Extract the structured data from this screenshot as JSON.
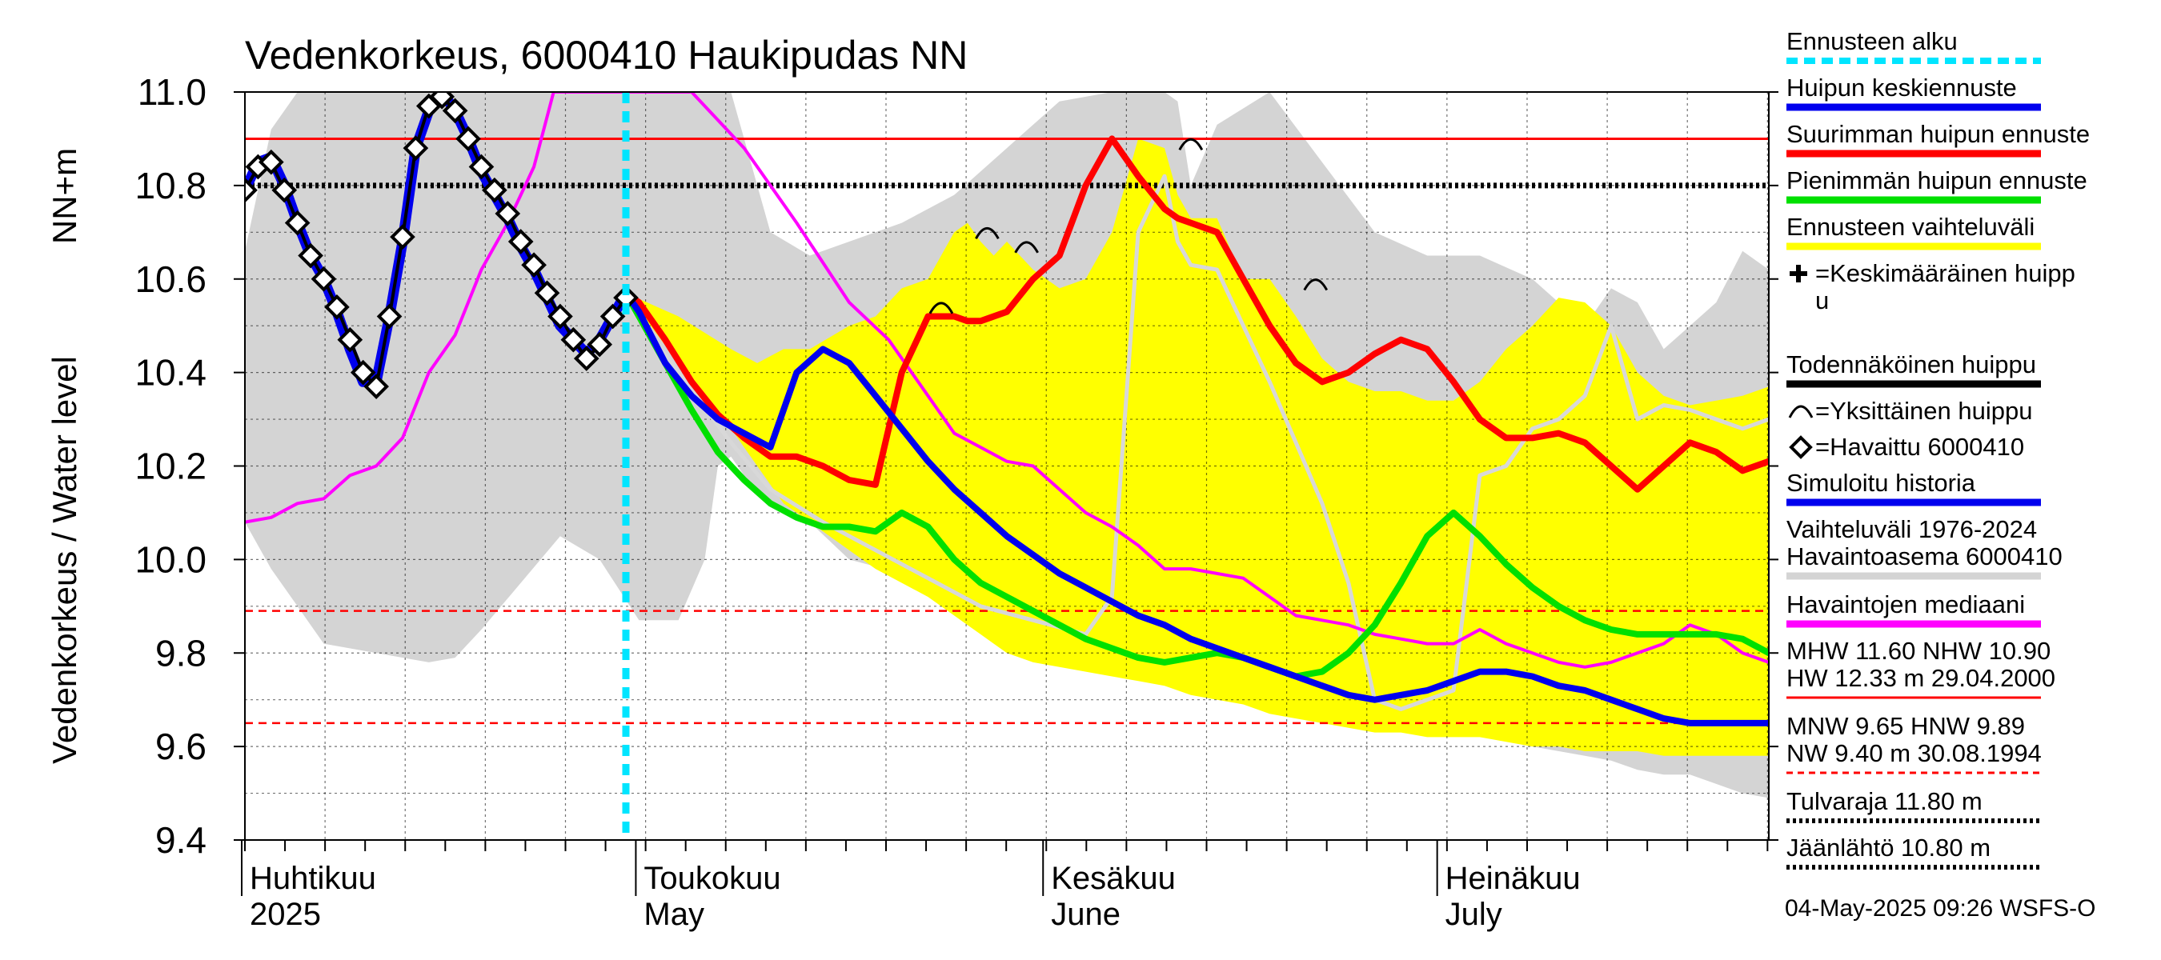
{
  "chart_data": {
    "type": "line",
    "title": "Vedenkorkeus, 6000410 Haukipudas NN",
    "ylabel_lines": [
      "Vedenkorkeus / Water level",
      "NN+m"
    ],
    "ylim": [
      9.4,
      11.0
    ],
    "yticks": [
      "9.4",
      "9.6",
      "9.8",
      "10.0",
      "10.2",
      "10.4",
      "10.6",
      "10.8",
      "11.0"
    ],
    "x_range_days": [
      0,
      116
    ],
    "month_labels": [
      {
        "day": 0,
        "fi": "Huhtikuu",
        "en": "2025"
      },
      {
        "day": 30,
        "fi": "Toukokuu",
        "en": "May"
      },
      {
        "day": 61,
        "fi": "Kesäkuu",
        "en": "June"
      },
      {
        "day": 91,
        "fi": "Heinäkuu",
        "en": "July"
      }
    ],
    "forecast_start_day": 29,
    "reference_lines": [
      {
        "value": 10.9,
        "style": "solid",
        "color": "#ff0000"
      },
      {
        "value": 10.8,
        "style": "dotted",
        "color": "#000000"
      },
      {
        "value": 9.89,
        "style": "dashed",
        "color": "#ff0000"
      },
      {
        "value": 9.65,
        "style": "dashed",
        "color": "#ff0000"
      }
    ],
    "history_range": {
      "color": "#d4d4d4",
      "x": [
        0,
        2,
        4,
        6,
        10,
        14,
        16,
        18,
        21,
        24,
        27,
        30,
        33,
        35,
        36,
        37,
        38,
        40,
        43,
        46,
        50,
        54,
        58,
        62,
        66,
        70,
        71,
        72,
        74,
        78,
        82,
        86,
        90,
        94,
        98,
        102,
        104,
        106,
        108,
        110,
        112,
        114,
        116
      ],
      "upper": [
        10.66,
        10.92,
        11.0,
        11.0,
        11.0,
        11.0,
        11.0,
        11.0,
        11.0,
        11.0,
        11.0,
        11.0,
        11.0,
        11.0,
        11.0,
        11.0,
        10.9,
        10.7,
        10.65,
        10.68,
        10.72,
        10.78,
        10.88,
        10.98,
        11.0,
        11.0,
        10.98,
        10.8,
        10.93,
        11.0,
        10.85,
        10.7,
        10.65,
        10.65,
        10.6,
        10.5,
        10.58,
        10.55,
        10.45,
        10.5,
        10.55,
        10.66,
        10.62
      ],
      "lower": [
        10.08,
        9.98,
        9.9,
        9.82,
        9.8,
        9.78,
        9.79,
        9.85,
        9.95,
        10.05,
        10.0,
        9.87,
        9.87,
        10.0,
        10.2,
        10.22,
        10.18,
        10.12,
        10.08,
        10.0,
        9.97,
        9.92,
        9.88,
        9.83,
        9.8,
        9.76,
        9.73,
        9.73,
        9.72,
        9.7,
        9.69,
        9.68,
        9.64,
        9.63,
        9.6,
        9.58,
        9.57,
        9.55,
        9.54,
        9.54,
        9.52,
        9.5,
        9.49
      ]
    },
    "series": [
      {
        "name": "Ennusteen vaihteluväli",
        "kind": "band",
        "color": "#ffff00",
        "x": [
          29,
          33,
          37,
          39,
          41,
          43,
          46,
          48,
          50,
          52,
          54,
          55,
          56,
          57,
          58,
          60,
          62,
          64,
          66,
          68,
          70,
          71,
          72,
          74,
          76,
          78,
          80,
          82,
          84,
          86,
          88,
          90,
          92,
          94,
          96,
          98,
          100,
          102,
          104,
          106,
          108,
          110,
          112,
          114,
          116
        ],
        "upper": [
          10.57,
          10.52,
          10.45,
          10.42,
          10.45,
          10.45,
          10.5,
          10.52,
          10.58,
          10.6,
          10.7,
          10.72,
          10.68,
          10.65,
          10.68,
          10.62,
          10.58,
          10.6,
          10.7,
          10.9,
          10.88,
          10.78,
          10.73,
          10.73,
          10.6,
          10.6,
          10.52,
          10.43,
          10.38,
          10.36,
          10.36,
          10.34,
          10.34,
          10.38,
          10.45,
          10.5,
          10.56,
          10.55,
          10.5,
          10.4,
          10.35,
          10.33,
          10.34,
          10.35,
          10.37
        ],
        "lower": [
          10.57,
          10.42,
          10.28,
          10.2,
          10.12,
          10.08,
          10.02,
          9.98,
          9.95,
          9.92,
          9.88,
          9.86,
          9.84,
          9.82,
          9.8,
          9.78,
          9.77,
          9.76,
          9.75,
          9.74,
          9.73,
          9.72,
          9.71,
          9.7,
          9.69,
          9.67,
          9.66,
          9.65,
          9.64,
          9.63,
          9.63,
          9.62,
          9.62,
          9.62,
          9.61,
          9.6,
          9.6,
          9.59,
          9.59,
          9.59,
          9.58,
          9.58,
          9.58,
          9.58,
          9.58
        ]
      },
      {
        "name": "Vaihteluvälin mediaani",
        "kind": "line",
        "color": "#d8d8d8",
        "width": 5,
        "x": [
          29,
          33,
          37,
          40,
          44,
          48,
          52,
          56,
          60,
          64,
          66,
          68,
          70,
          71,
          72,
          74,
          76,
          78,
          80,
          82,
          84,
          86,
          88,
          90,
          92,
          94,
          96,
          98,
          100,
          102,
          104,
          106,
          108,
          110,
          112,
          114,
          116
        ],
        "y": [
          10.55,
          10.4,
          10.25,
          10.15,
          10.08,
          10.02,
          9.96,
          9.9,
          9.87,
          9.84,
          9.92,
          10.7,
          10.82,
          10.68,
          10.63,
          10.62,
          10.5,
          10.38,
          10.25,
          10.12,
          9.95,
          9.7,
          9.68,
          9.7,
          9.72,
          10.18,
          10.2,
          10.28,
          10.3,
          10.35,
          10.5,
          10.3,
          10.33,
          10.32,
          10.3,
          10.28,
          10.3
        ]
      },
      {
        "name": "Havaintojen mediaani",
        "kind": "line",
        "color": "#ff00ff",
        "width": 4,
        "x": [
          0,
          2,
          4,
          6,
          8,
          10,
          12,
          14,
          16,
          18,
          20,
          21,
          22,
          23.5,
          34,
          38,
          42,
          46,
          49,
          52,
          54,
          56,
          58,
          60,
          62,
          64,
          66,
          68,
          70,
          72,
          74,
          76,
          78,
          80,
          82,
          84,
          86,
          88,
          90,
          92,
          94,
          96,
          98,
          100,
          102,
          104,
          106,
          108,
          110,
          112,
          114,
          116
        ],
        "y": [
          10.08,
          10.09,
          10.12,
          10.13,
          10.18,
          10.2,
          10.26,
          10.4,
          10.48,
          10.62,
          10.72,
          10.78,
          10.84,
          11.0,
          11.0,
          10.88,
          10.72,
          10.55,
          10.47,
          10.35,
          10.27,
          10.24,
          10.21,
          10.2,
          10.15,
          10.1,
          10.07,
          10.03,
          9.98,
          9.98,
          9.97,
          9.96,
          9.92,
          9.88,
          9.87,
          9.86,
          9.84,
          9.83,
          9.82,
          9.82,
          9.85,
          9.82,
          9.8,
          9.78,
          9.77,
          9.78,
          9.8,
          9.82,
          9.86,
          9.84,
          9.8,
          9.78
        ]
      },
      {
        "name": "Pienimmän huipun ennuste",
        "kind": "line",
        "color": "#00e000",
        "width": 8,
        "x": [
          29,
          30,
          32,
          34,
          36,
          38,
          40,
          42,
          44,
          46,
          48,
          50,
          52,
          54,
          56,
          58,
          60,
          62,
          64,
          66,
          68,
          70,
          72,
          74,
          76,
          78,
          80,
          82,
          84,
          86,
          88,
          90,
          92,
          94,
          96,
          98,
          100,
          102,
          104,
          106,
          108,
          110,
          112,
          114,
          116
        ],
        "y": [
          10.57,
          10.52,
          10.42,
          10.32,
          10.23,
          10.17,
          10.12,
          10.09,
          10.07,
          10.07,
          10.06,
          10.1,
          10.07,
          10.0,
          9.95,
          9.92,
          9.89,
          9.86,
          9.83,
          9.81,
          9.79,
          9.78,
          9.79,
          9.8,
          9.79,
          9.77,
          9.75,
          9.76,
          9.8,
          9.86,
          9.95,
          10.05,
          10.1,
          10.05,
          9.99,
          9.94,
          9.9,
          9.87,
          9.85,
          9.84,
          9.84,
          9.84,
          9.84,
          9.83,
          9.8
        ]
      },
      {
        "name": "Suurimman huipun ennuste",
        "kind": "line",
        "color": "#ff0000",
        "width": 8,
        "x": [
          29,
          30,
          32,
          34,
          36,
          38,
          40,
          42,
          44,
          46,
          48,
          50,
          52,
          54,
          55,
          56,
          58,
          60,
          62,
          64,
          66,
          68,
          70,
          71,
          72,
          74,
          76,
          78,
          80,
          82,
          84,
          86,
          88,
          90,
          92,
          94,
          96,
          98,
          100,
          102,
          104,
          106,
          108,
          110,
          112,
          114,
          116
        ],
        "y": [
          10.57,
          10.55,
          10.47,
          10.38,
          10.31,
          10.26,
          10.22,
          10.22,
          10.2,
          10.17,
          10.16,
          10.4,
          10.52,
          10.52,
          10.51,
          10.51,
          10.53,
          10.6,
          10.65,
          10.8,
          10.9,
          10.82,
          10.75,
          10.73,
          10.72,
          10.7,
          10.6,
          10.5,
          10.42,
          10.38,
          10.4,
          10.44,
          10.47,
          10.45,
          10.38,
          10.3,
          10.26,
          10.26,
          10.27,
          10.25,
          10.2,
          10.15,
          10.2,
          10.25,
          10.23,
          10.19,
          10.21
        ]
      },
      {
        "name": "Huipun keskiennuste",
        "kind": "line",
        "color": "#0000ee",
        "width": 8,
        "x": [
          29,
          30,
          32,
          34,
          36,
          38,
          40,
          42,
          44,
          46,
          48,
          50,
          52,
          54,
          56,
          58,
          60,
          62,
          64,
          66,
          68,
          70,
          72,
          74,
          76,
          78,
          80,
          82,
          84,
          86,
          88,
          90,
          92,
          94,
          96,
          98,
          100,
          102,
          104,
          106,
          108,
          110,
          112,
          114,
          116
        ],
        "y": [
          10.57,
          10.53,
          10.42,
          10.35,
          10.3,
          10.27,
          10.24,
          10.4,
          10.45,
          10.42,
          10.35,
          10.28,
          10.21,
          10.15,
          10.1,
          10.05,
          10.01,
          9.97,
          9.94,
          9.91,
          9.88,
          9.86,
          9.83,
          9.81,
          9.79,
          9.77,
          9.75,
          9.73,
          9.71,
          9.7,
          9.71,
          9.72,
          9.74,
          9.76,
          9.76,
          9.75,
          9.73,
          9.72,
          9.7,
          9.68,
          9.66,
          9.65,
          9.65,
          9.65,
          9.65
        ]
      },
      {
        "name": "Simuloitu historia",
        "kind": "line",
        "color": "#0000ee",
        "width": 13,
        "x": [
          0,
          1,
          2,
          3,
          4,
          5,
          6,
          7,
          8,
          9,
          10,
          11,
          12,
          13,
          14,
          15,
          16,
          17,
          18,
          19,
          20,
          21,
          22,
          23,
          24,
          25,
          26,
          27,
          28,
          29
        ],
        "y": [
          10.79,
          10.85,
          10.86,
          10.8,
          10.72,
          10.65,
          10.6,
          10.53,
          10.45,
          10.38,
          10.38,
          10.52,
          10.68,
          10.88,
          10.96,
          11.0,
          10.96,
          10.9,
          10.83,
          10.78,
          10.73,
          10.67,
          10.62,
          10.56,
          10.5,
          10.47,
          10.44,
          10.47,
          10.52,
          10.57
        ]
      },
      {
        "name": "Havaittu 6000410",
        "kind": "markers",
        "color": "#000000",
        "x": [
          0,
          1,
          2,
          3,
          4,
          5,
          6,
          7,
          8,
          9,
          10,
          11,
          12,
          13,
          14,
          15,
          16,
          17,
          18,
          19,
          20,
          21,
          22,
          23,
          24,
          25,
          26,
          27,
          28,
          29
        ],
        "y": [
          10.79,
          10.84,
          10.85,
          10.79,
          10.72,
          10.65,
          10.6,
          10.54,
          10.47,
          10.4,
          10.37,
          10.52,
          10.69,
          10.88,
          10.97,
          10.99,
          10.96,
          10.9,
          10.84,
          10.79,
          10.74,
          10.68,
          10.63,
          10.57,
          10.52,
          10.47,
          10.43,
          10.46,
          10.52,
          10.56
        ]
      }
    ],
    "single_peaks": [
      {
        "day": 53,
        "value": 10.54
      },
      {
        "day": 56.5,
        "value": 10.7
      },
      {
        "day": 59.5,
        "value": 10.67
      },
      {
        "day": 72,
        "value": 10.89
      },
      {
        "day": 81.5,
        "value": 10.59
      }
    ],
    "legend": [
      {
        "label": "Ennusteen alku",
        "swatch": "dashed",
        "color": "#00e5ff"
      },
      {
        "label": "Huipun keskiennuste",
        "swatch": "line",
        "color": "#0000ee"
      },
      {
        "label": "Suurimman huipun ennuste",
        "swatch": "line",
        "color": "#ff0000"
      },
      {
        "label": "Pienimmän huipun ennuste",
        "swatch": "line",
        "color": "#00e000"
      },
      {
        "label": "Ennusteen vaihteluväli",
        "swatch": "line",
        "color": "#ffff00"
      },
      {
        "label": "=Keskimääräinen huipp",
        "label2": "u",
        "swatch": "plus"
      },
      {
        "label": "Todennäköinen huippu",
        "swatch": "line",
        "color": "#000000"
      },
      {
        "label": "=Yksittäinen huippu",
        "swatch": "arc"
      },
      {
        "label": "=Havaittu 6000410",
        "swatch": "diamond"
      },
      {
        "label": "Simuloitu historia",
        "swatch": "line",
        "color": "#0000ee"
      },
      {
        "label": "Vaihteluväli 1976-2024",
        "label2": " Havaintoasema 6000410",
        "swatch": "line",
        "color": "#d4d4d4"
      },
      {
        "label": "Havaintojen mediaani",
        "swatch": "line",
        "color": "#ff00ff"
      },
      {
        "label": "MHW  11.60 NHW  10.90",
        "label2": "HW  12.33 m 29.04.2000",
        "swatch": "line",
        "color": "#ff0000"
      },
      {
        "label": "MNW   9.65 HNW   9.89",
        "label2": "NW   9.40 m 30.08.1994",
        "swatch": "dashed",
        "color": "#ff0000"
      },
      {
        "label": "Tulvaraja 11.80 m",
        "swatch": "dotted",
        "color": "#000000"
      },
      {
        "label": "Jäänlähtö 10.80 m",
        "swatch": "dotted",
        "color": "#000000"
      }
    ],
    "footer": "04-May-2025 09:26 WSFS-O"
  }
}
